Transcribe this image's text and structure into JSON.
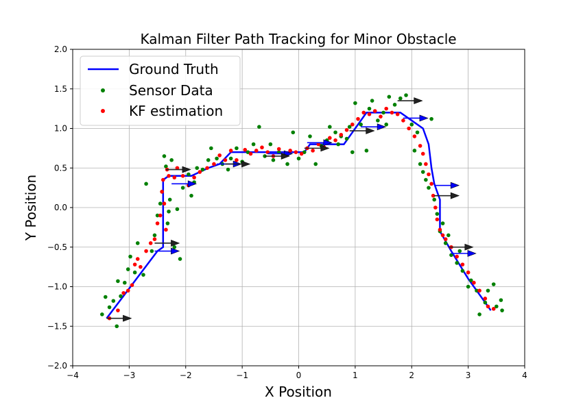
{
  "chart_data": {
    "type": "scatter",
    "title": "Kalman Filter Path Tracking for Minor Obstacle",
    "xlabel": "X Position",
    "ylabel": "Y Position",
    "xlim": [
      -4,
      4
    ],
    "ylim": [
      -2,
      2
    ],
    "xticks": [
      -4,
      -3,
      -2,
      -1,
      0,
      1,
      2,
      3,
      4
    ],
    "yticks": [
      -2.0,
      -1.5,
      -1.0,
      -0.5,
      0.0,
      0.5,
      1.0,
      1.5,
      2.0
    ],
    "xtick_labels": [
      "−4",
      "−3",
      "−2",
      "−1",
      "0",
      "1",
      "2",
      "3",
      "4"
    ],
    "ytick_labels": [
      "−2.0",
      "−1.5",
      "−1.0",
      "−0.5",
      "0.0",
      "0.5",
      "1.0",
      "1.5",
      "2.0"
    ],
    "grid": true,
    "legend_position": "top-left",
    "series": [
      {
        "name": "Ground Truth",
        "kind": "line",
        "color": "#0000ff",
        "points": [
          [
            -3.4,
            -1.4
          ],
          [
            -2.5,
            -0.55
          ],
          [
            -2.4,
            -0.5
          ],
          [
            -2.4,
            0.35
          ],
          [
            -2.3,
            0.4
          ],
          [
            -1.9,
            0.4
          ],
          [
            -1.6,
            0.5
          ],
          [
            -1.4,
            0.55
          ],
          [
            -1.2,
            0.7
          ],
          [
            -0.2,
            0.7
          ],
          [
            0.1,
            0.7
          ],
          [
            0.2,
            0.8
          ],
          [
            0.8,
            0.8
          ],
          [
            1.0,
            1.0
          ],
          [
            1.2,
            1.2
          ],
          [
            1.8,
            1.2
          ],
          [
            2.0,
            1.1
          ],
          [
            2.2,
            1.0
          ],
          [
            2.3,
            0.8
          ],
          [
            2.35,
            0.5
          ],
          [
            2.4,
            0.3
          ],
          [
            2.45,
            0.2
          ],
          [
            2.5,
            0.1
          ],
          [
            2.5,
            -0.3
          ],
          [
            2.7,
            -0.55
          ],
          [
            3.0,
            -0.9
          ],
          [
            3.4,
            -1.3
          ]
        ]
      },
      {
        "name": "Sensor Data",
        "kind": "scatter",
        "color": "#008000",
        "points": [
          [
            -3.48,
            -1.35
          ],
          [
            -3.42,
            -1.13
          ],
          [
            -3.35,
            -1.26
          ],
          [
            -3.28,
            -1.18
          ],
          [
            -3.22,
            -1.5
          ],
          [
            -3.2,
            -0.93
          ],
          [
            -3.15,
            -1.12
          ],
          [
            -3.08,
            -0.95
          ],
          [
            -3.02,
            -0.78
          ],
          [
            -2.98,
            -0.62
          ],
          [
            -2.9,
            -0.82
          ],
          [
            -2.85,
            -0.45
          ],
          [
            -2.75,
            -0.85
          ],
          [
            -2.7,
            0.3
          ],
          [
            -2.6,
            -0.55
          ],
          [
            -2.55,
            -0.35
          ],
          [
            -2.5,
            -0.1
          ],
          [
            -2.45,
            0.05
          ],
          [
            -2.42,
            0.2
          ],
          [
            -2.38,
            0.65
          ],
          [
            -2.35,
            0.52
          ],
          [
            -2.32,
            -0.2
          ],
          [
            -2.3,
            -0.05
          ],
          [
            -2.28,
            0.1
          ],
          [
            -2.25,
            0.6
          ],
          [
            -2.2,
            -0.5
          ],
          [
            -2.15,
            -0.02
          ],
          [
            -2.1,
            -0.65
          ],
          [
            -2.05,
            0.25
          ],
          [
            -1.95,
            0.42
          ],
          [
            -1.9,
            0.15
          ],
          [
            -1.85,
            0.32
          ],
          [
            -1.8,
            0.5
          ],
          [
            -1.7,
            0.48
          ],
          [
            -1.6,
            0.6
          ],
          [
            -1.55,
            0.75
          ],
          [
            -1.45,
            0.62
          ],
          [
            -1.35,
            0.55
          ],
          [
            -1.25,
            0.48
          ],
          [
            -1.2,
            0.62
          ],
          [
            -1.1,
            0.75
          ],
          [
            -1.0,
            0.58
          ],
          [
            -0.9,
            0.7
          ],
          [
            -0.8,
            0.8
          ],
          [
            -0.7,
            1.02
          ],
          [
            -0.6,
            0.65
          ],
          [
            -0.5,
            0.8
          ],
          [
            -0.45,
            0.6
          ],
          [
            -0.35,
            0.7
          ],
          [
            -0.2,
            0.55
          ],
          [
            -0.1,
            0.95
          ],
          [
            0.0,
            0.62
          ],
          [
            0.1,
            0.7
          ],
          [
            0.2,
            0.9
          ],
          [
            0.3,
            0.55
          ],
          [
            0.4,
            0.78
          ],
          [
            0.5,
            0.85
          ],
          [
            0.55,
            1.02
          ],
          [
            0.65,
            0.95
          ],
          [
            0.7,
            0.8
          ],
          [
            0.75,
            0.9
          ],
          [
            0.85,
            0.87
          ],
          [
            0.9,
            1.02
          ],
          [
            0.95,
            0.7
          ],
          [
            1.0,
            1.32
          ],
          [
            1.1,
            1.05
          ],
          [
            1.2,
            0.72
          ],
          [
            1.25,
            1.25
          ],
          [
            1.3,
            1.35
          ],
          [
            1.4,
            1.1
          ],
          [
            1.5,
            1.2
          ],
          [
            1.55,
            1.05
          ],
          [
            1.6,
            1.4
          ],
          [
            1.7,
            1.3
          ],
          [
            1.8,
            1.38
          ],
          [
            1.9,
            1.42
          ],
          [
            2.0,
            1.05
          ],
          [
            2.05,
            0.72
          ],
          [
            2.1,
            0.95
          ],
          [
            2.15,
            0.55
          ],
          [
            2.2,
            0.45
          ],
          [
            2.25,
            0.35
          ],
          [
            2.3,
            0.25
          ],
          [
            2.35,
            1.12
          ],
          [
            2.4,
            0.1
          ],
          [
            2.45,
            -0.08
          ],
          [
            2.5,
            -0.3
          ],
          [
            2.55,
            -0.2
          ],
          [
            2.6,
            -0.45
          ],
          [
            2.65,
            -0.35
          ],
          [
            2.7,
            -0.6
          ],
          [
            2.8,
            -0.7
          ],
          [
            2.85,
            -0.55
          ],
          [
            2.9,
            -0.8
          ],
          [
            3.0,
            -1.0
          ],
          [
            3.05,
            -0.92
          ],
          [
            3.15,
            -1.05
          ],
          [
            3.2,
            -1.35
          ],
          [
            3.3,
            -1.2
          ],
          [
            3.35,
            -1.05
          ],
          [
            3.45,
            -0.97
          ],
          [
            3.5,
            -1.25
          ],
          [
            3.58,
            -1.17
          ],
          [
            3.6,
            -1.3
          ]
        ]
      },
      {
        "name": "KF estimation",
        "kind": "scatter",
        "color": "#ff0000",
        "points": [
          [
            -3.35,
            -1.4
          ],
          [
            -3.2,
            -1.3
          ],
          [
            -3.1,
            -1.08
          ],
          [
            -3.02,
            -1.05
          ],
          [
            -2.95,
            -0.98
          ],
          [
            -2.9,
            -0.72
          ],
          [
            -2.85,
            -0.65
          ],
          [
            -2.8,
            -0.75
          ],
          [
            -2.7,
            -0.55
          ],
          [
            -2.62,
            -0.45
          ],
          [
            -2.55,
            -0.4
          ],
          [
            -2.5,
            -0.2
          ],
          [
            -2.45,
            -0.1
          ],
          [
            -2.42,
            0.2
          ],
          [
            -2.4,
            0.35
          ],
          [
            -2.38,
            0.05
          ],
          [
            -2.35,
            -0.28
          ],
          [
            -2.33,
            0.48
          ],
          [
            -2.3,
            0.4
          ],
          [
            -2.2,
            0.38
          ],
          [
            -2.15,
            0.5
          ],
          [
            -2.05,
            0.4
          ],
          [
            -1.95,
            0.28
          ],
          [
            -1.85,
            0.38
          ],
          [
            -1.75,
            0.45
          ],
          [
            -1.62,
            0.5
          ],
          [
            -1.5,
            0.55
          ],
          [
            -1.4,
            0.66
          ],
          [
            -1.3,
            0.6
          ],
          [
            -1.2,
            0.72
          ],
          [
            -1.1,
            0.6
          ],
          [
            -0.95,
            0.73
          ],
          [
            -0.85,
            0.68
          ],
          [
            -0.75,
            0.72
          ],
          [
            -0.65,
            0.76
          ],
          [
            -0.55,
            0.7
          ],
          [
            -0.45,
            0.65
          ],
          [
            -0.35,
            0.74
          ],
          [
            -0.25,
            0.66
          ],
          [
            -0.15,
            0.72
          ],
          [
            -0.05,
            0.7
          ],
          [
            0.05,
            0.68
          ],
          [
            0.15,
            0.75
          ],
          [
            0.25,
            0.72
          ],
          [
            0.35,
            0.8
          ],
          [
            0.45,
            0.76
          ],
          [
            0.55,
            0.88
          ],
          [
            0.65,
            0.85
          ],
          [
            0.75,
            0.92
          ],
          [
            0.85,
            0.98
          ],
          [
            0.95,
            1.05
          ],
          [
            1.05,
            1.12
          ],
          [
            1.15,
            1.2
          ],
          [
            1.25,
            1.18
          ],
          [
            1.35,
            1.22
          ],
          [
            1.45,
            1.15
          ],
          [
            1.55,
            1.25
          ],
          [
            1.65,
            1.2
          ],
          [
            1.75,
            1.18
          ],
          [
            1.85,
            1.1
          ],
          [
            1.95,
            1.0
          ],
          [
            2.05,
            0.9
          ],
          [
            2.15,
            0.78
          ],
          [
            2.2,
            0.68
          ],
          [
            2.25,
            0.55
          ],
          [
            2.3,
            0.42
          ],
          [
            2.35,
            0.3
          ],
          [
            2.38,
            0.15
          ],
          [
            2.42,
            0.0
          ],
          [
            2.45,
            -0.15
          ],
          [
            2.5,
            -0.28
          ],
          [
            2.55,
            -0.35
          ],
          [
            2.6,
            -0.4
          ],
          [
            2.7,
            -0.5
          ],
          [
            2.8,
            -0.62
          ],
          [
            2.9,
            -0.72
          ],
          [
            3.0,
            -0.82
          ],
          [
            3.1,
            -0.95
          ],
          [
            3.2,
            -1.05
          ],
          [
            3.3,
            -1.15
          ],
          [
            3.35,
            -1.25
          ],
          [
            3.45,
            -1.28
          ]
        ]
      }
    ],
    "arrows_blue": [
      [
        -2.55,
        -0.55
      ],
      [
        -2.25,
        0.3
      ],
      [
        -1.45,
        0.55
      ],
      [
        -0.55,
        0.68
      ],
      [
        0.15,
        0.82
      ],
      [
        1.1,
        1.02
      ],
      [
        1.85,
        1.13
      ],
      [
        2.4,
        0.28
      ],
      [
        2.7,
        -0.58
      ]
    ],
    "arrows_black": [
      [
        -3.4,
        -1.4
      ],
      [
        -2.55,
        -0.45
      ],
      [
        -2.35,
        0.48
      ],
      [
        -1.3,
        0.55
      ],
      [
        -0.6,
        0.65
      ],
      [
        0.1,
        0.75
      ],
      [
        0.9,
        0.97
      ],
      [
        1.75,
        1.35
      ],
      [
        2.4,
        0.15
      ],
      [
        2.65,
        -0.5
      ]
    ]
  }
}
